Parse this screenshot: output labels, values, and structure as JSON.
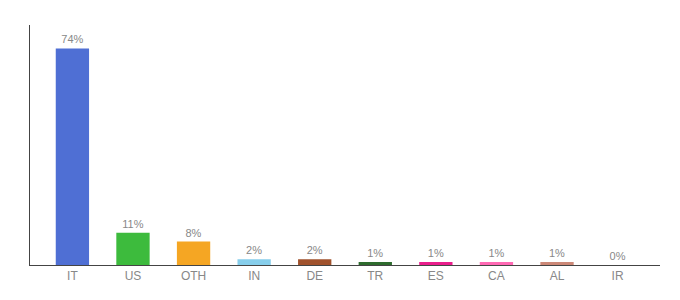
{
  "chart_data": {
    "type": "bar",
    "categories": [
      "IT",
      "US",
      "OTH",
      "IN",
      "DE",
      "TR",
      "ES",
      "CA",
      "AL",
      "IR"
    ],
    "values": [
      74,
      11,
      8,
      2,
      2,
      1,
      1,
      1,
      1,
      0
    ],
    "value_labels": [
      "74%",
      "11%",
      "8%",
      "2%",
      "2%",
      "1%",
      "1%",
      "1%",
      "1%",
      "0%"
    ],
    "colors": [
      "#4f6fd4",
      "#3dbb3d",
      "#f5a623",
      "#87ceeb",
      "#a0522d",
      "#2e6b2e",
      "#e91e8c",
      "#ff69b4",
      "#cc8877",
      "#cccccc"
    ],
    "ylim": [
      0,
      82
    ],
    "yticks": [],
    "grid": false,
    "data_labels": true,
    "tick_labels": "x"
  }
}
